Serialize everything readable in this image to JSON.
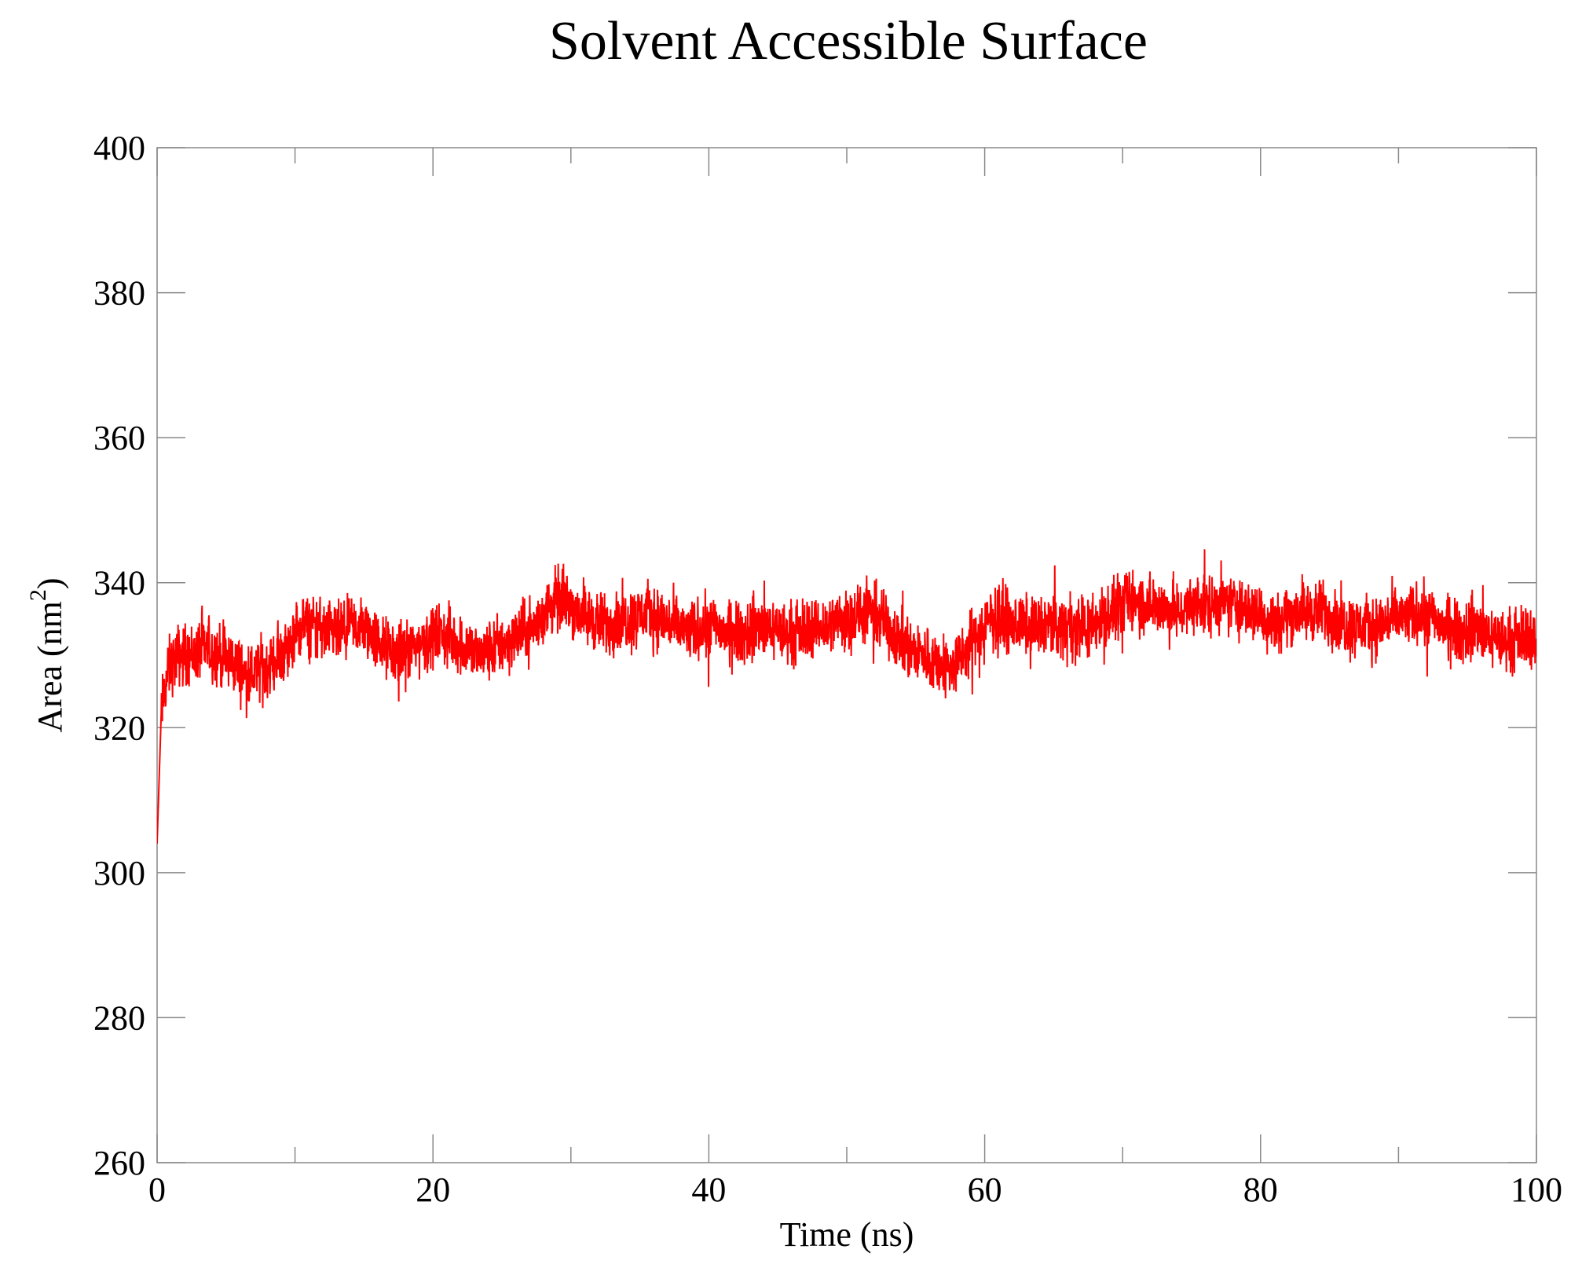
{
  "chart_data": {
    "type": "line",
    "title": "Solvent Accessible Surface",
    "xlabel": "Time (ns)",
    "ylabel_main": "Area (nm",
    "ylabel_sup": "2",
    "ylabel_close": ")",
    "xlim": [
      0,
      100
    ],
    "ylim": [
      260,
      400
    ],
    "xticks": [
      0,
      20,
      40,
      60,
      80,
      100
    ],
    "xtick_labels": [
      "0",
      "20",
      "40",
      "60",
      "80",
      "100"
    ],
    "xminor": [
      10,
      30,
      50,
      70,
      90
    ],
    "yticks": [
      260,
      280,
      300,
      320,
      340,
      360,
      380,
      400
    ],
    "ytick_labels": [
      "260",
      "280",
      "300",
      "320",
      "340",
      "360",
      "380",
      "400"
    ],
    "grid": false,
    "legend": "none",
    "series": [
      {
        "color": "#ff0000",
        "x": [
          0,
          0.3,
          0.8,
          1.5,
          2.5,
          3.5,
          4.5,
          5.5,
          6.5,
          7.5,
          8.5,
          9.5,
          10.5,
          11.5,
          12.5,
          13.5,
          14.5,
          15.5,
          16.5,
          17.5,
          18.5,
          19.5,
          20.5,
          21.5,
          22.5,
          23.5,
          24.5,
          25.5,
          26.5,
          27.5,
          28.5,
          29.5,
          30.5,
          31.5,
          32.5,
          33.5,
          34.5,
          35.5,
          36.5,
          37.5,
          38.5,
          39.5,
          40.5,
          41.5,
          42.5,
          43.5,
          44.5,
          45.5,
          46.5,
          47.5,
          48.5,
          49.5,
          50.5,
          51.5,
          52.5,
          53.5,
          54.5,
          55.5,
          56.5,
          57.5,
          58.5,
          59.5,
          60.5,
          61.5,
          62.5,
          63.5,
          64.5,
          65.5,
          66.5,
          67.5,
          68.5,
          69.5,
          70.5,
          71.5,
          72.5,
          73.5,
          74.5,
          75.5,
          76.5,
          77.5,
          78.5,
          79.5,
          80.5,
          81.5,
          82.5,
          83.5,
          84.5,
          85.5,
          86.5,
          87.5,
          88.5,
          89.5,
          90.5,
          91.5,
          92.5,
          93.5,
          94.5,
          95.5,
          96.5,
          97.5,
          98.5,
          99.5,
          100
        ],
        "y": [
          304,
          322,
          328,
          330,
          330,
          331,
          330,
          329,
          327,
          328,
          329,
          331,
          334,
          334,
          333,
          333,
          334,
          333,
          331,
          330,
          331,
          332,
          333,
          332,
          331,
          330,
          331,
          332,
          333,
          334,
          337,
          338,
          336,
          335,
          334,
          335,
          335,
          336,
          335,
          334,
          333,
          334,
          334,
          333,
          333,
          334,
          334,
          333,
          333,
          334,
          334,
          335,
          335,
          336,
          335,
          333,
          331,
          330,
          329,
          328,
          330,
          333,
          335,
          335,
          334,
          334,
          334,
          334,
          334,
          334,
          335,
          336,
          338,
          337,
          337,
          336,
          336,
          337,
          337,
          337,
          337,
          336,
          335,
          335,
          336,
          336,
          336,
          335,
          334,
          334,
          334,
          335,
          335,
          336,
          335,
          334,
          333,
          334,
          333,
          332,
          332,
          333,
          331
        ]
      }
    ]
  }
}
